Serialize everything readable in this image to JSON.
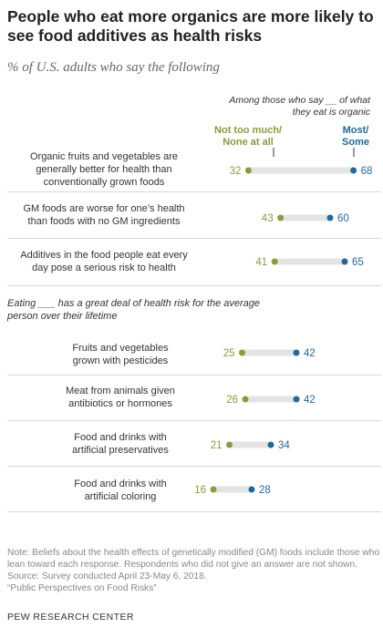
{
  "title": "People who eat more organics are more likely to see food additives as health risks",
  "subtitle": "% of U.S. adults who say the following",
  "among_header": "Among those who say __ of what they eat is organic",
  "legend": {
    "low": {
      "line1": "Not too much/",
      "line2": "None at all"
    },
    "high": {
      "line1": "Most/",
      "line2": "Some"
    }
  },
  "colors": {
    "low": "#8c9a3a",
    "high": "#1e6aa0",
    "bar": "#e4e4e4"
  },
  "section2_heading": "Eating ___ has a great deal of health risk for the average person over their lifetime",
  "chart_data": {
    "type": "dot",
    "series": [
      {
        "name": "Not too much/None at all",
        "key": "low"
      },
      {
        "name": "Most/Some",
        "key": "high"
      }
    ],
    "groups": [
      {
        "heading": "",
        "rows": [
          {
            "label": [
              "Organic fruits and vegetables are",
              "generally better for health than",
              "conventionally grown foods"
            ],
            "low": 32,
            "high": 68
          },
          {
            "label": [
              "GM foods are worse for one’s health",
              "than foods with no GM ingredients"
            ],
            "low": 43,
            "high": 60
          },
          {
            "label": [
              "Additives in the food people eat every",
              "day pose a serious risk to health"
            ],
            "low": 41,
            "high": 65
          }
        ]
      },
      {
        "heading": "Eating ___ has a great deal of health risk for the average person over their lifetime",
        "rows": [
          {
            "label": [
              "Fruits and vegetables",
              "grown with pesticides"
            ],
            "low": 25,
            "high": 42
          },
          {
            "label": [
              "Meat from animals given",
              "antibiotics or hormones"
            ],
            "low": 26,
            "high": 42
          },
          {
            "label": [
              "Food and drinks with",
              "artificial preservatives"
            ],
            "low": 21,
            "high": 34
          },
          {
            "label": [
              "Food and drinks with",
              "artificial coloring"
            ],
            "low": 16,
            "high": 28
          }
        ]
      }
    ]
  },
  "notes": [
    "Note: Beliefs about the health effects of genetically modified (GM) foods include those who lean toward each response. Respondents who did not give an answer are not shown.",
    "Source: Survey conducted April 23-May 6, 2018.",
    "“Public Perspectives on Food Risks”"
  ],
  "credit": "PEW RESEARCH CENTER"
}
